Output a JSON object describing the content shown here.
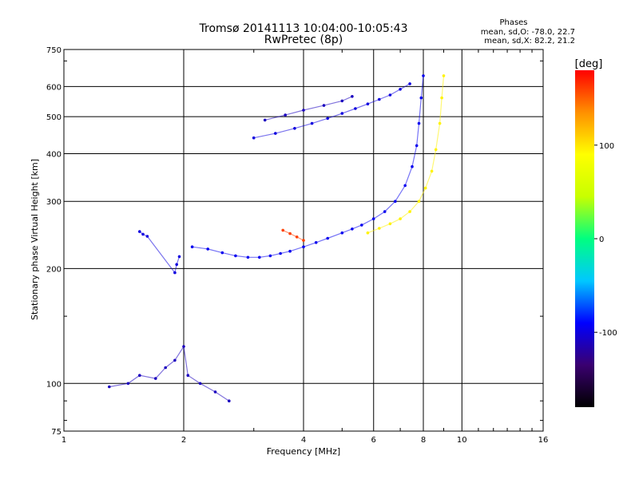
{
  "chart_data": {
    "type": "scatter",
    "title": "Tromsø 20141113 10:04:00-10:05:43",
    "subtitle": "RwPretec (8p)",
    "xlabel": "Frequency [MHz]",
    "ylabel": "Stationary phase Virtual Height [km]",
    "x_scale": "log",
    "y_scale": "log",
    "xlim": [
      1,
      16
    ],
    "ylim": [
      75,
      750
    ],
    "grid": true,
    "x_ticks": [
      1,
      2,
      4,
      6,
      8,
      10,
      16
    ],
    "y_ticks": [
      75,
      100,
      200,
      300,
      400,
      500,
      600,
      750
    ],
    "stats": {
      "header": "Phases",
      "line_o": "mean, sd,O: -78.0, 22.7",
      "line_x": "mean, sd,X: 82.2, 21.2"
    },
    "colorbar": {
      "label": "[deg]",
      "min": -180,
      "max": 180,
      "ticks": [
        100,
        0,
        -100
      ],
      "colormap": [
        "#000000",
        "#3a0070",
        "#0000ff",
        "#00c8ff",
        "#00ff80",
        "#c8ff00",
        "#ffff00",
        "#ff9000",
        "#ff0000"
      ]
    },
    "series": [
      {
        "trace": "o_lower_F",
        "phase": -95,
        "x": [
          2.1,
          2.3,
          2.5,
          2.7,
          2.9,
          3.1,
          3.3,
          3.5,
          3.7,
          4.0,
          4.3,
          4.6,
          5.0,
          5.3,
          5.6,
          6.0,
          6.4,
          6.8,
          7.2,
          7.5,
          7.7,
          7.8,
          7.9,
          8.0
        ],
        "y": [
          228,
          225,
          220,
          216,
          214,
          214,
          216,
          219,
          222,
          228,
          234,
          240,
          248,
          254,
          260,
          270,
          282,
          300,
          330,
          370,
          420,
          480,
          560,
          640
        ]
      },
      {
        "trace": "x_lower_F",
        "phase": 95,
        "x": [
          5.8,
          6.2,
          6.6,
          7.0,
          7.4,
          7.8,
          8.1,
          8.4,
          8.6,
          8.8,
          8.9,
          9.0
        ],
        "y": [
          248,
          255,
          262,
          270,
          282,
          300,
          325,
          360,
          410,
          480,
          560,
          640
        ]
      },
      {
        "trace": "o_upper_F",
        "phase": -100,
        "x": [
          3.0,
          3.4,
          3.8,
          4.2,
          4.6,
          5.0,
          5.4,
          5.8,
          6.2,
          6.6,
          7.0,
          7.4
        ],
        "y": [
          440,
          452,
          466,
          480,
          495,
          510,
          525,
          540,
          555,
          570,
          590,
          610
        ]
      },
      {
        "trace": "o_upper_F2",
        "phase": -110,
        "x": [
          3.2,
          3.6,
          4.0,
          4.5,
          5.0,
          5.3
        ],
        "y": [
          490,
          505,
          520,
          535,
          550,
          565
        ]
      },
      {
        "trace": "es_spread",
        "phase": -110,
        "x": [
          1.3,
          1.45,
          1.55,
          1.7,
          1.8,
          1.9,
          2.0,
          2.05,
          2.2,
          2.4,
          2.6
        ],
        "y": [
          98,
          100,
          105,
          103,
          110,
          115,
          125,
          105,
          100,
          95,
          90
        ]
      },
      {
        "trace": "oblique_1_7",
        "phase": -100,
        "x": [
          1.55,
          1.58,
          1.62,
          1.9,
          1.92,
          1.95
        ],
        "y": [
          250,
          246,
          243,
          195,
          205,
          215
        ]
      },
      {
        "trace": "red_segment",
        "phase": 160,
        "x": [
          3.55,
          3.7,
          3.85,
          4.0
        ],
        "y": [
          252,
          247,
          242,
          237
        ]
      }
    ]
  }
}
